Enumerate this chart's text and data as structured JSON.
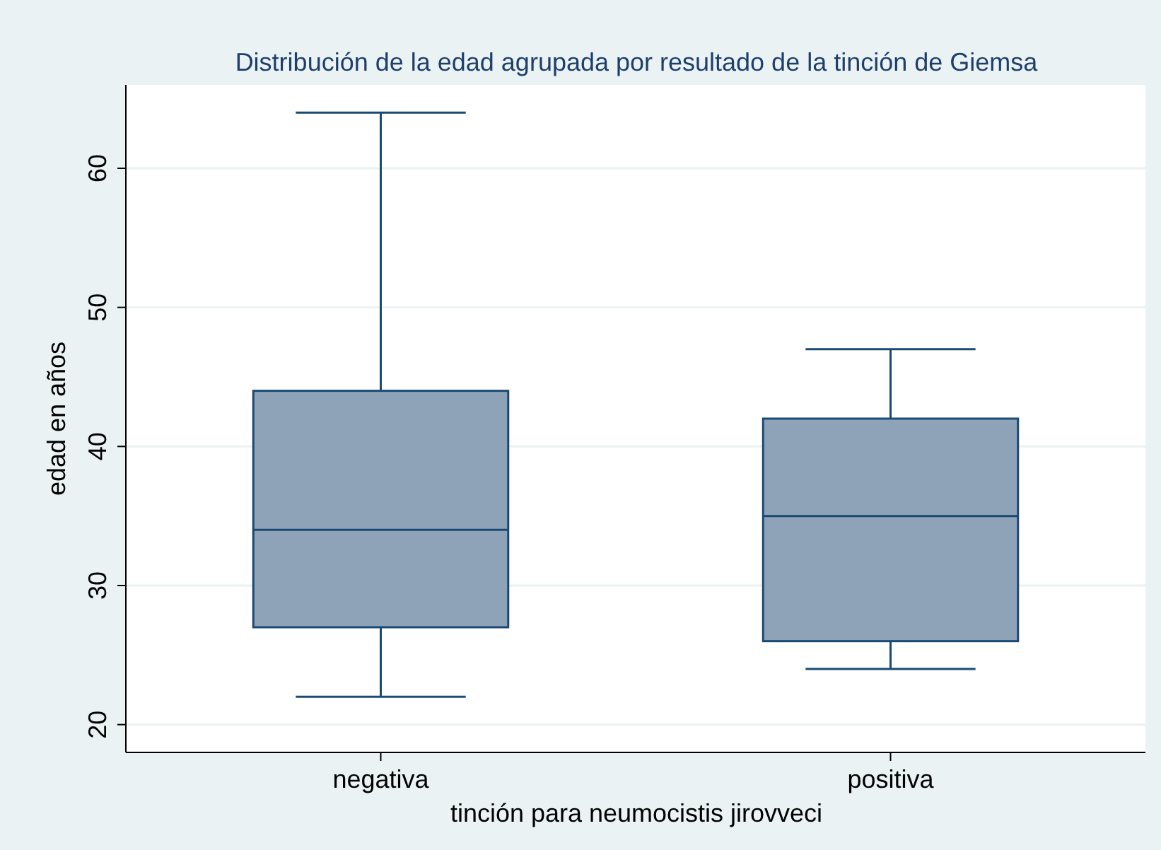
{
  "chart_data": {
    "type": "box",
    "title": "Distribución de la edad agrupada por resultado de la tinción de Giemsa",
    "xlabel": "tinción para neumocistis jirovveci",
    "ylabel": "edad en años",
    "categories": [
      "negativa",
      "positiva"
    ],
    "color": "#8ea3b7",
    "boxes": [
      {
        "low": 22,
        "q1": 27,
        "median": 34,
        "q3": 44,
        "high": 64
      },
      {
        "low": 24,
        "q1": 26,
        "median": 35,
        "q3": 42,
        "high": 47
      }
    ],
    "ylim": [
      18,
      66
    ],
    "yticks": [
      20,
      30,
      40,
      50,
      60
    ],
    "grid": "y"
  }
}
